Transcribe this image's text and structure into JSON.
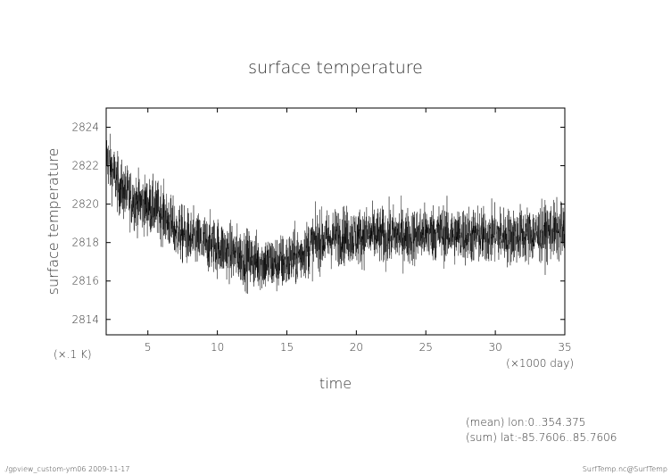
{
  "chart_data": {
    "type": "line",
    "title": "surface temperature",
    "xlabel": "time",
    "ylabel": "surface temperature",
    "x_units": "(×1000 day)",
    "y_units": "(×.1 K)",
    "xlim": [
      2,
      35
    ],
    "ylim": [
      2813.2,
      2825.0
    ],
    "x_ticks": [
      5,
      10,
      15,
      20,
      25,
      30,
      35
    ],
    "y_ticks": [
      2814,
      2816,
      2818,
      2820,
      2822,
      2824
    ],
    "grid": false,
    "series": [
      {
        "x": [
          2,
          3,
          4,
          5,
          6,
          7,
          8,
          9,
          10,
          11,
          12,
          13,
          14,
          15,
          16,
          17,
          18,
          19,
          20,
          21,
          22,
          23,
          24,
          25,
          26,
          27,
          28,
          29,
          30,
          31,
          32,
          33,
          34,
          35
        ],
        "values": [
          2822.5,
          2820.8,
          2820.2,
          2819.9,
          2819.6,
          2818.6,
          2818.2,
          2818.0,
          2817.8,
          2817.5,
          2817.2,
          2817.0,
          2816.9,
          2817.0,
          2817.4,
          2818.0,
          2818.2,
          2818.4,
          2818.3,
          2818.4,
          2818.3,
          2818.4,
          2818.3,
          2818.5,
          2818.5,
          2818.4,
          2818.4,
          2818.3,
          2818.4,
          2818.3,
          2818.4,
          2818.4,
          2818.6,
          2818.5
        ],
        "noise_amplitude": 1.4
      }
    ]
  },
  "annotations": {
    "mean": "(mean) lon:0..354.375",
    "sum": "(sum) lat:-85.7606..85.7606"
  },
  "footer": {
    "left": "./gpview_custom-ym06  2009-11-17",
    "right": "SurfTemp.nc@SurfTemp"
  }
}
